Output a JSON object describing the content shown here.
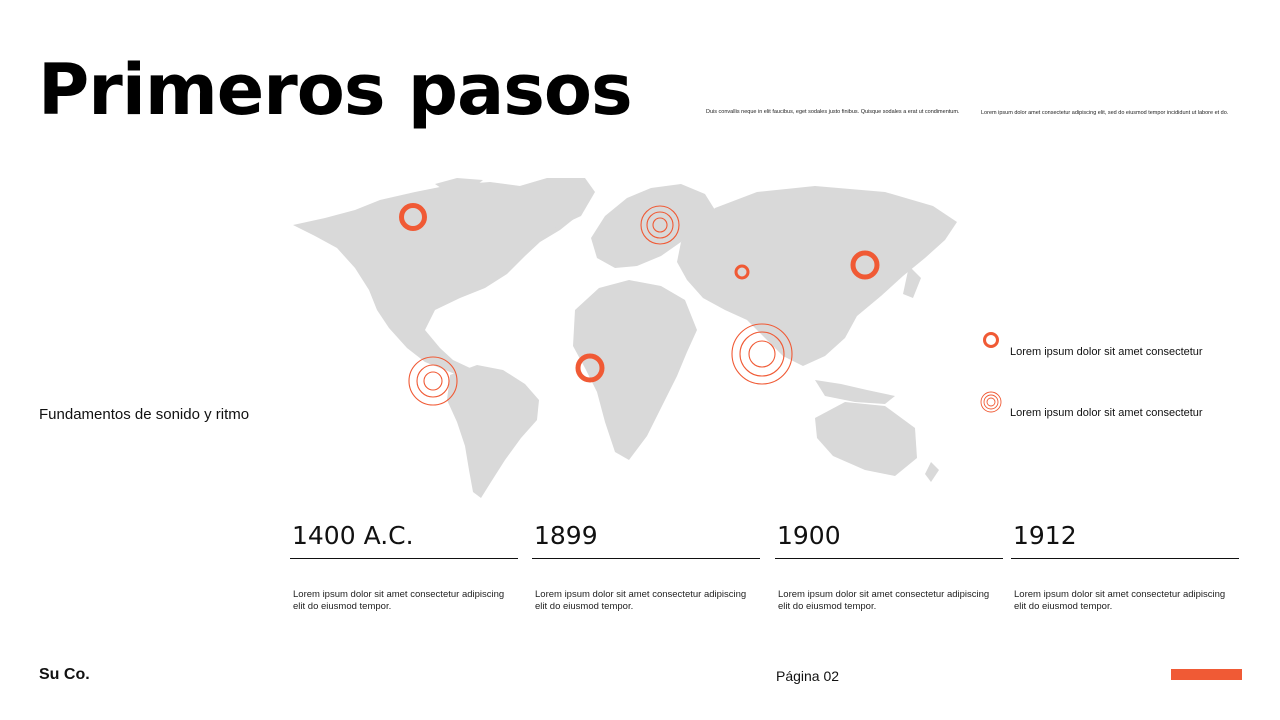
{
  "title": "Primeros pasos",
  "header_notes": [
    "Duis convallis neque in elit faucibus, eget sodales justo finibus. Quisque sodales a erat ut condimentum.",
    "Lorem ipsum dolor amet consectetur adipiscing elit, sed do eiusmod tempor incididunt ut labore et do."
  ],
  "subtitle": "Fundamentos de sonido y ritmo",
  "legend": [
    {
      "marker": "solid-ring",
      "label": "Lorem ipsum dolor sit amet consectetur"
    },
    {
      "marker": "concentric-rings",
      "label": "Lorem ipsum dolor sit amet consectetur"
    }
  ],
  "timeline": [
    {
      "year": "1400 A.C.",
      "text": "Lorem ipsum dolor sit amet consectetur adipiscing elit do eiusmod tempor."
    },
    {
      "year": "1899",
      "text": "Lorem ipsum dolor sit amet consectetur adipiscing elit do eiusmod tempor."
    },
    {
      "year": "1900",
      "text": "Lorem ipsum dolor sit amet consectetur adipiscing elit do eiusmod tempor."
    },
    {
      "year": "1912",
      "text": "Lorem ipsum dolor sit amet consectetur adipiscing elit do eiusmod tempor."
    }
  ],
  "footer": {
    "company": "Su Co.",
    "page": "Página 02"
  },
  "colors": {
    "accent": "#f05a35",
    "map_land": "#d9d9d9",
    "text": "#111111"
  }
}
